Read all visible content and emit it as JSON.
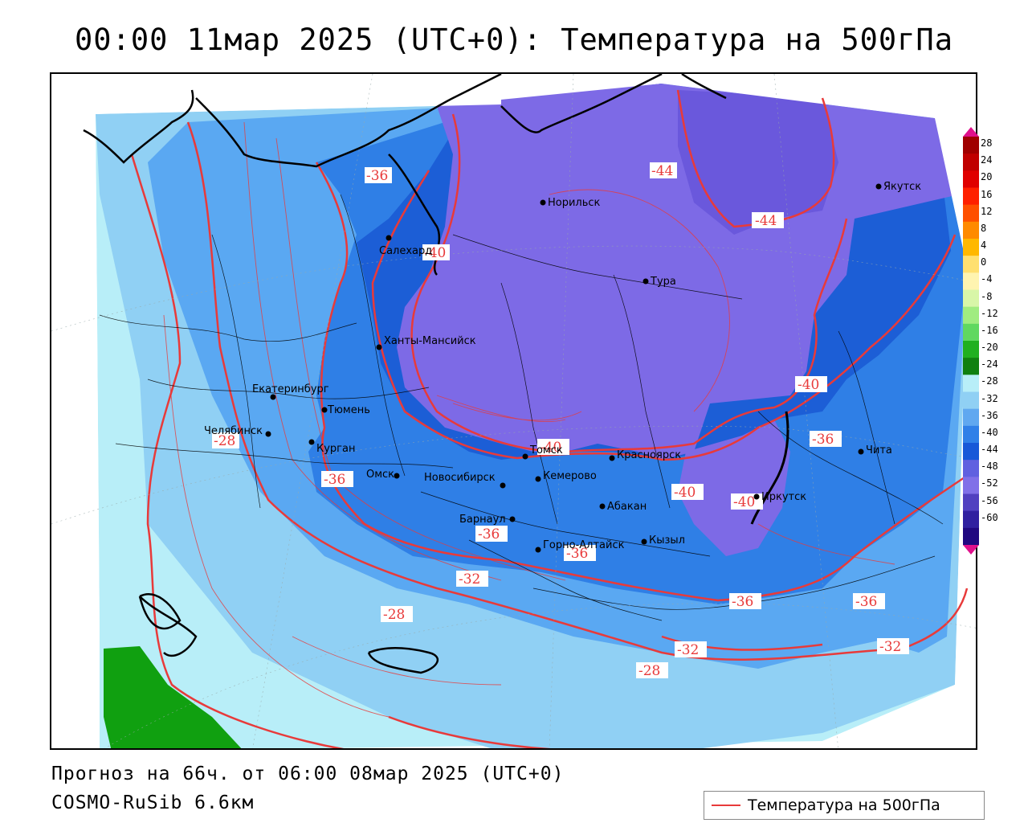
{
  "header": {
    "title": "00:00 11мар 2025 (UTC+0): Температура на 500гПа"
  },
  "footer": {
    "forecast": "Прогноз на 66ч. от 06:00 08мар 2025 (UTC+0)",
    "model": "COSMO-RuSib 6.6км"
  },
  "legend": {
    "label": "Температура на 500гПа",
    "line_color": "#e83a3a"
  },
  "colorbar": {
    "labels": [
      "28",
      "24",
      "20",
      "16",
      "12",
      "8",
      "4",
      "0",
      "-4",
      "-8",
      "-12",
      "-16",
      "-20",
      "-24",
      "-28",
      "-32",
      "-36",
      "-40",
      "-44",
      "-48",
      "-52",
      "-56",
      "-60"
    ],
    "colors": [
      "#a00000",
      "#c00000",
      "#e00000",
      "#ff2000",
      "#ff5000",
      "#ff8a00",
      "#ffb800",
      "#ffe070",
      "#fff4b0",
      "#d8f6a8",
      "#a0ec80",
      "#60d860",
      "#20b020",
      "#108010",
      "#b8eef8",
      "#90d0f4",
      "#60a8f0",
      "#3080e8",
      "#1858d8",
      "#6060e0",
      "#8070e8",
      "#5040c0",
      "#3020a0",
      "#200880"
    ],
    "top_arrow": "#e0108c",
    "bottom_arrow": "#e0108c"
  },
  "cities": [
    {
      "name": "Норильск"
    },
    {
      "name": "Якутск"
    },
    {
      "name": "Салехард"
    },
    {
      "name": "Тура"
    },
    {
      "name": "Ханты-Мансийск"
    },
    {
      "name": "Екатеринбург"
    },
    {
      "name": "Тюмень"
    },
    {
      "name": "Челябинск"
    },
    {
      "name": "Курган"
    },
    {
      "name": "Омск"
    },
    {
      "name": "Новосибирск"
    },
    {
      "name": "Томск"
    },
    {
      "name": "Кемерово"
    },
    {
      "name": "Красноярск"
    },
    {
      "name": "Барнаул"
    },
    {
      "name": "Абакан"
    },
    {
      "name": "Иркутск"
    },
    {
      "name": "Чита"
    },
    {
      "name": "Горно-Алтайск"
    },
    {
      "name": "Кызыл"
    }
  ],
  "isolines": [
    "-36",
    "-44",
    "-44",
    "-40",
    "-40",
    "-28",
    "-36",
    "-40",
    "-36",
    "-40",
    "-40",
    "-36",
    "-36",
    "-32",
    "-28",
    "-36",
    "-36",
    "-32",
    "-32",
    "-28"
  ],
  "colors": {
    "c24": "#b8eef8",
    "c28": "#90d0f4",
    "c32": "#5aa8f2",
    "c36": "#2f7fe6",
    "c40": "#1c5ed6",
    "c44": "#7d6ae6",
    "c48": "#6450d8",
    "green": "#10a010",
    "isoline": "#e83a3a"
  }
}
